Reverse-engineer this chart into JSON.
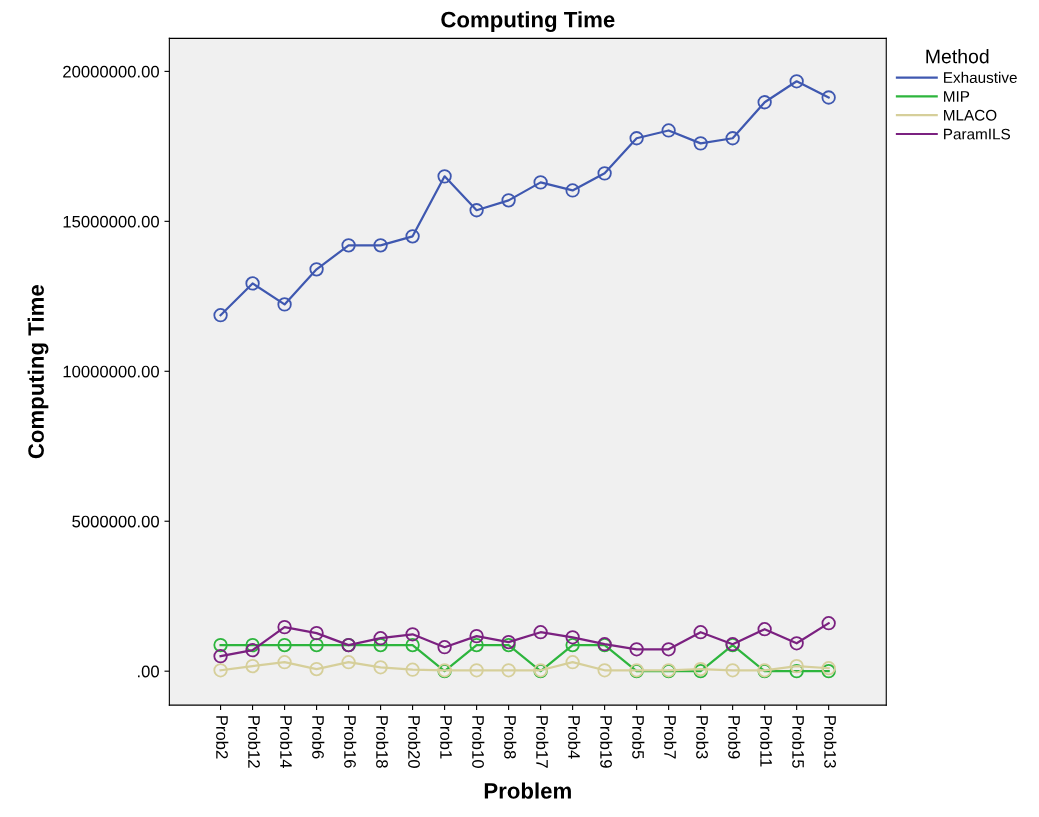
{
  "chart_data": {
    "type": "line",
    "title": "Computing Time",
    "xlabel": "Problem",
    "ylabel": "Computing Time",
    "legend_title": "Method",
    "categories": [
      "Prob2",
      "Prob12",
      "Prob14",
      "Prob6",
      "Prob16",
      "Prob18",
      "Prob20",
      "Prob1",
      "Prob10",
      "Prob8",
      "Prob17",
      "Prob4",
      "Prob19",
      "Prob5",
      "Prob7",
      "Prob3",
      "Prob9",
      "Prob11",
      "Prob15",
      "Prob13"
    ],
    "series": [
      {
        "name": "Exhaustive",
        "color": "#3f58b0",
        "values": [
          11870000,
          12930000,
          12230000,
          13400000,
          14200000,
          14200000,
          14500000,
          16500000,
          15370000,
          15700000,
          16300000,
          16030000,
          16600000,
          17770000,
          18030000,
          17600000,
          17770000,
          18970000,
          19670000,
          19130000
        ]
      },
      {
        "name": "MIP",
        "color": "#2db53d",
        "values": [
          870000,
          870000,
          870000,
          870000,
          870000,
          870000,
          870000,
          0,
          870000,
          870000,
          0,
          870000,
          870000,
          0,
          0,
          0,
          870000,
          0,
          0,
          0
        ]
      },
      {
        "name": "MLACO",
        "color": "#d6cf9a",
        "values": [
          30000,
          170000,
          300000,
          70000,
          300000,
          130000,
          50000,
          30000,
          30000,
          30000,
          30000,
          300000,
          30000,
          30000,
          30000,
          70000,
          30000,
          30000,
          170000,
          100000
        ]
      },
      {
        "name": "ParamILS",
        "color": "#7b2180",
        "values": [
          500000,
          700000,
          1470000,
          1270000,
          870000,
          1100000,
          1230000,
          800000,
          1170000,
          970000,
          1300000,
          1130000,
          900000,
          730000,
          730000,
          1300000,
          900000,
          1400000,
          930000,
          1600000
        ]
      }
    ],
    "ylim": [
      -1130000,
      21100000
    ],
    "yticks": [
      {
        "value": 0,
        "label": ".00"
      },
      {
        "value": 5000000,
        "label": "5000000.00"
      },
      {
        "value": 10000000,
        "label": "10000000.00"
      },
      {
        "value": 15000000,
        "label": "15000000.00"
      },
      {
        "value": 20000000,
        "label": "20000000.00"
      }
    ],
    "grid": false,
    "legend": "right",
    "marker": "circle",
    "line_style": "solid"
  }
}
